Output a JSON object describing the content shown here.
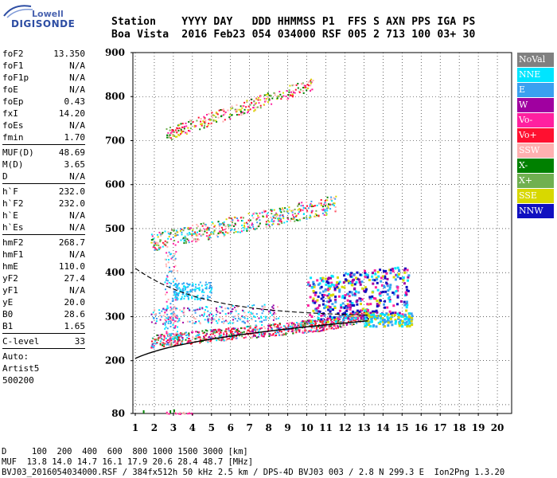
{
  "logo": {
    "lowell": "Lowell",
    "digisonde": "DIGISONDE"
  },
  "header": {
    "line1": "Station    YYYY DAY   DDD HHMMSS P1  FFS S AXN PPS IGA PS",
    "line2": "Boa Vista  2016 Feb23 054 034000 RSF 005 2 713 100 03+ 30"
  },
  "params": {
    "g1": [
      {
        "label": "foF2",
        "value": "13.350"
      },
      {
        "label": "foF1",
        "value": "N/A"
      },
      {
        "label": "foF1p",
        "value": "N/A"
      },
      {
        "label": "foE",
        "value": "N/A"
      },
      {
        "label": "foEp",
        "value": "0.43"
      },
      {
        "label": "fxI",
        "value": "14.20"
      },
      {
        "label": "foEs",
        "value": "N/A"
      },
      {
        "label": "fmin",
        "value": "1.70"
      }
    ],
    "g2": [
      {
        "label": "MUF(D)",
        "value": "48.69"
      },
      {
        "label": "M(D)",
        "value": "3.65"
      },
      {
        "label": "D",
        "value": "N/A"
      }
    ],
    "g3": [
      {
        "label": "h`F",
        "value": "232.0"
      },
      {
        "label": "h`F2",
        "value": "232.0"
      },
      {
        "label": "h`E",
        "value": "N/A"
      },
      {
        "label": "h`Es",
        "value": "N/A"
      }
    ],
    "g4": [
      {
        "label": "hmF2",
        "value": "268.7"
      },
      {
        "label": "hmF1",
        "value": "N/A"
      },
      {
        "label": "hmE",
        "value": "110.0"
      },
      {
        "label": "yF2",
        "value": "27.4"
      },
      {
        "label": "yF1",
        "value": "N/A"
      },
      {
        "label": "yE",
        "value": "20.0"
      },
      {
        "label": "B0",
        "value": "28.6"
      },
      {
        "label": "B1",
        "value": "1.65"
      }
    ],
    "g5": [
      {
        "label": "C-level",
        "value": "33"
      }
    ],
    "auto": "Auto:",
    "artist": "Artist5",
    "code": "500200"
  },
  "legend": [
    {
      "label": "NoVal",
      "color": "#808080"
    },
    {
      "label": "NNE",
      "color": "#00e5ff"
    },
    {
      "label": "E",
      "color": "#3aa0f0"
    },
    {
      "label": "W",
      "color": "#a000a0"
    },
    {
      "label": "Vo-",
      "color": "#ff20a0"
    },
    {
      "label": "Vo+",
      "color": "#ff1030"
    },
    {
      "label": "SSW",
      "color": "#ffb0b0"
    },
    {
      "label": "X-",
      "color": "#008000"
    },
    {
      "label": "X+",
      "color": "#70b050"
    },
    {
      "label": "SSE",
      "color": "#d8d800"
    },
    {
      "label": "NNW",
      "color": "#1010c0"
    }
  ],
  "footer": {
    "line1": "D     100  200  400  600  800 1000 1500 3000 [km]",
    "line2": "MUF  13.8 14.0 14.7 16.1 17.9 20.6 28.4 48.7 [MHz]",
    "line3": "BVJ03_2016054034000.RSF / 384fx512h 50 kHz 2.5 km / DPS-4D BVJ03 003 / 2.8 N 299.3 E  Ion2Png 1.3.20"
  },
  "chart_data": {
    "type": "scatter",
    "xticks": [
      "1",
      "2",
      "3",
      "4",
      "5",
      "6",
      "7",
      "8",
      "9",
      "10",
      "11",
      "12",
      "13",
      "14",
      "15",
      "16",
      "17",
      "18",
      "19",
      "20"
    ],
    "yticks": [
      "80",
      "200",
      "300",
      "400",
      "500",
      "600",
      "700",
      "800",
      "900"
    ],
    "series": [
      {
        "name": "NoVal",
        "points": [
          [
            1.4,
            80
          ],
          [
            2.8,
            80
          ],
          [
            3.0,
            82
          ]
        ]
      }
    ]
  }
}
